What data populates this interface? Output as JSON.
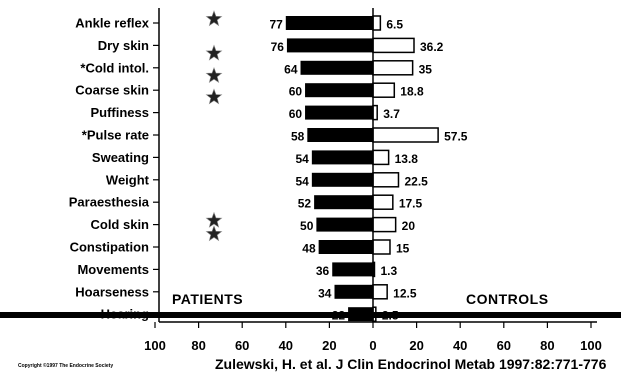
{
  "chart_data": {
    "type": "bar",
    "categories": [
      "Ankle reflex",
      "Dry skin",
      "*Cold intol.",
      "Coarse skin",
      "Puffiness",
      "*Pulse rate",
      "Sweating",
      "Weight",
      "Paraesthesia",
      "Cold skin",
      "Constipation",
      "Movements",
      "Hoarseness",
      "Hearing"
    ],
    "series": [
      {
        "name": "PATIENTS",
        "values": [
          77,
          76,
          64,
          60,
          60,
          58,
          54,
          54,
          52,
          50,
          48,
          36,
          34,
          22
        ],
        "labels": [
          "77",
          "76",
          "64",
          "60",
          "60",
          "58",
          "54",
          "54",
          "52",
          "50",
          "48",
          "36",
          "34",
          "22"
        ],
        "color": "#000000"
      },
      {
        "name": "CONTROLS",
        "values": [
          6.5,
          36.2,
          35,
          18.8,
          3.7,
          57.5,
          13.8,
          22.5,
          17.5,
          20,
          15,
          1.3,
          12.5,
          2.5
        ],
        "labels": [
          "6.5",
          "36.2",
          "35",
          "18.8",
          "3.7",
          "57.5",
          "13.8",
          "22.5",
          "17.5",
          "20",
          "15",
          "1.3",
          "12.5",
          "2.5"
        ],
        "color": "#ffffff"
      }
    ],
    "star_markers": [
      "Ankle reflex",
      "Dry skin",
      "*Cold intol.",
      "Coarse skin",
      "Cold skin",
      "Constipation"
    ],
    "x_ticks": [
      "100",
      "80",
      "60",
      "40",
      "20",
      "0",
      "20",
      "40",
      "60",
      "80",
      "100"
    ],
    "xlim": [
      -100,
      100
    ],
    "annotations": {
      "patients": "PATIENTS",
      "controls": "CONTROLS"
    }
  },
  "footer": {
    "copyright": "Copyright ©1997 The Endocrine Society",
    "citation": "Zulewski, H. et al. J Clin Endocrinol Metab 1997:82:771-776"
  }
}
